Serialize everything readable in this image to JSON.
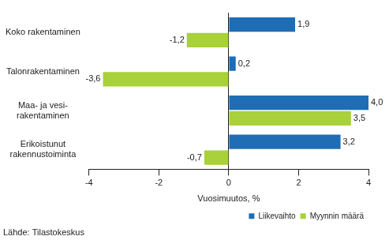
{
  "chart_data": {
    "type": "bar",
    "orientation": "horizontal",
    "categories": [
      "Koko rakentaminen",
      "Talonrakentaminen",
      "Maa- ja vesi-\nrakentaminen",
      "Erikoistunut\nrakennustoiminta"
    ],
    "series": [
      {
        "name": "Liikevaihto",
        "color": "#1f6eb5",
        "values": [
          1.9,
          0.2,
          4.0,
          3.2
        ],
        "value_labels": [
          "1,9",
          "0,2",
          "4,0",
          "3,2"
        ]
      },
      {
        "name": "Myynnin määrä",
        "color": "#a8d13a",
        "values": [
          -1.2,
          -3.6,
          3.5,
          -0.7
        ],
        "value_labels": [
          "-1,2",
          "-3,6",
          "3,5",
          "-0,7"
        ]
      }
    ],
    "x_label": "Vuosimuutos, %",
    "xlim": [
      -4,
      4
    ],
    "xticks": [
      -4,
      -2,
      0,
      2,
      4
    ],
    "grid": false,
    "legend": "lower right",
    "data_labels": true,
    "annotations": [
      "Lähde: Tilastokeskus"
    ]
  }
}
